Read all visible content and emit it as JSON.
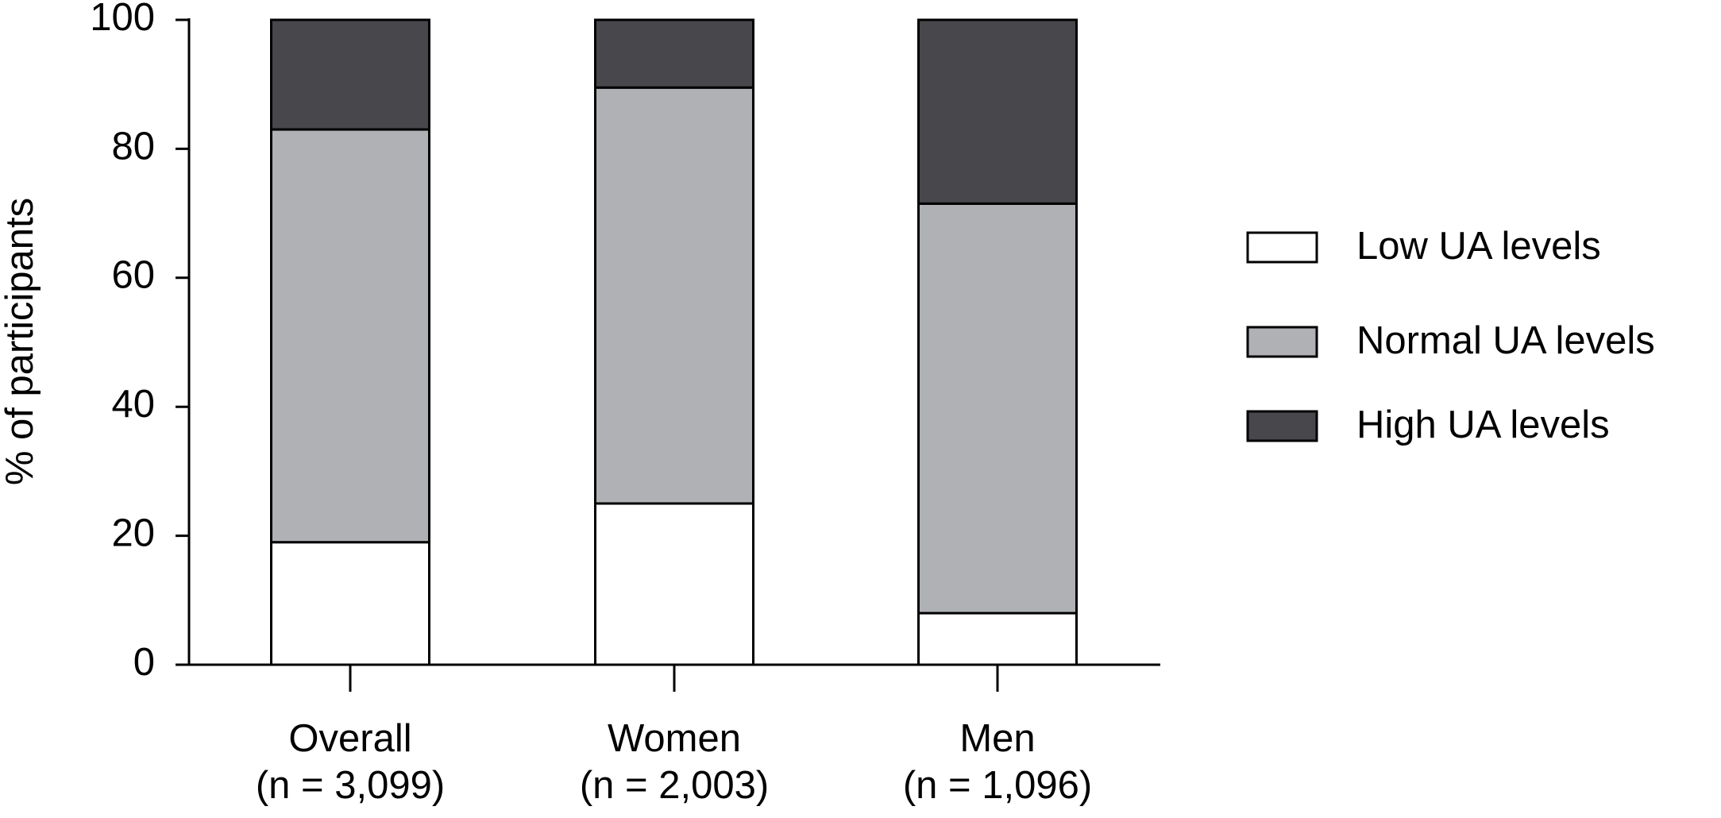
{
  "chart_data": {
    "type": "stacked-bar",
    "y_label": "% of participants",
    "categories": [
      [
        "Overall",
        "(n = 3,099)"
      ],
      [
        "Women",
        "(n = 2,003)"
      ],
      [
        "Men",
        "(n = 1,096)"
      ]
    ],
    "series": [
      {
        "name": "Low UA levels",
        "color": "#ffffff",
        "values": [
          19,
          25,
          8
        ]
      },
      {
        "name": "Normal UA levels",
        "color": "#b0b1b5",
        "values": [
          64,
          64.5,
          63.5
        ]
      },
      {
        "name": "High UA levels",
        "color": "#48474c",
        "values": [
          17,
          10.5,
          28.5
        ]
      }
    ],
    "ylim": [
      0,
      100
    ],
    "yticks": [
      0,
      20,
      40,
      60,
      80,
      100
    ],
    "grid": false,
    "legend": "right"
  }
}
